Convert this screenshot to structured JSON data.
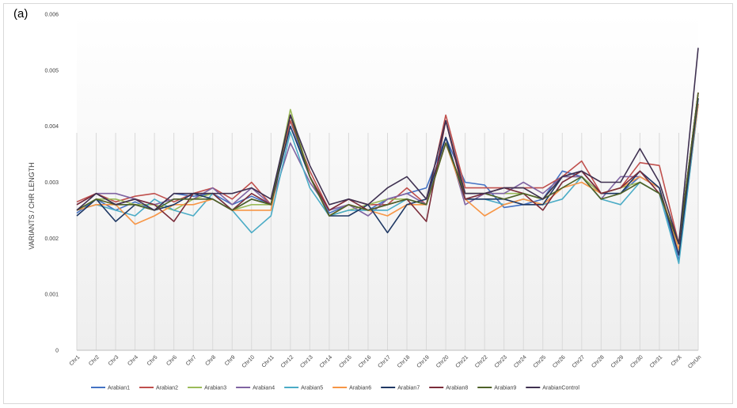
{
  "panel_label": "(a)",
  "chart_data": {
    "type": "line",
    "title": "",
    "xlabel": "",
    "ylabel": "VARIANTS / CHR LENGTH",
    "ylim": [
      0,
      0.006
    ],
    "yticks": [
      "0",
      "0.001",
      "0.002",
      "0.003",
      "0.004",
      "0.005",
      "0.006"
    ],
    "grid": "vertical",
    "legend_position": "bottom",
    "categories": [
      "Chr1",
      "Chr2",
      "Chr3",
      "Chr4",
      "Chr5",
      "Chr6",
      "Chr7",
      "Chr8",
      "Chr9",
      "Chr10",
      "Chr11",
      "Chr12",
      "Chr13",
      "Chr14",
      "Chr15",
      "Chr16",
      "Chr17",
      "Chr18",
      "Chr19",
      "Chr20",
      "Chr21",
      "Chr22",
      "Chr23",
      "Chr24",
      "Chr25",
      "Chr26",
      "Chr27",
      "Chr28",
      "Chr29",
      "Chr30",
      "Chr31",
      "ChrX",
      "ChrUn"
    ],
    "series": [
      {
        "name": "Arabian1",
        "color": "#4472c4",
        "values": [
          0.00245,
          0.0027,
          0.0025,
          0.00265,
          0.0025,
          0.0028,
          0.00275,
          0.0028,
          0.0026,
          0.00275,
          0.0026,
          0.0041,
          0.0031,
          0.00245,
          0.0026,
          0.0025,
          0.0027,
          0.0028,
          0.0029,
          0.0038,
          0.003,
          0.00295,
          0.00255,
          0.0026,
          0.0027,
          0.0032,
          0.0031,
          0.0028,
          0.0028,
          0.0031,
          0.0029,
          0.0016,
          0.0044
        ]
      },
      {
        "name": "Arabian2",
        "color": "#c0504d",
        "values": [
          0.00265,
          0.0028,
          0.00265,
          0.00275,
          0.0028,
          0.00265,
          0.0028,
          0.0029,
          0.0027,
          0.003,
          0.0026,
          0.0041,
          0.0032,
          0.0025,
          0.0027,
          0.0026,
          0.0026,
          0.0029,
          0.0026,
          0.0042,
          0.0029,
          0.0029,
          0.0029,
          0.0029,
          0.0029,
          0.0031,
          0.00338,
          0.0028,
          0.0029,
          0.00335,
          0.0033,
          0.0019,
          0.0046
        ]
      },
      {
        "name": "Arabian3",
        "color": "#9bbb59",
        "values": [
          0.0025,
          0.0027,
          0.0027,
          0.0026,
          0.0026,
          0.0025,
          0.0027,
          0.0028,
          0.0025,
          0.0026,
          0.0026,
          0.0043,
          0.0031,
          0.0024,
          0.0025,
          0.0026,
          0.0027,
          0.0027,
          0.0026,
          0.0037,
          0.0028,
          0.0028,
          0.0028,
          0.0028,
          0.0027,
          0.0031,
          0.0031,
          0.0028,
          0.0029,
          0.003,
          0.0028,
          0.0019,
          0.0045
        ]
      },
      {
        "name": "Arabian4",
        "color": "#8064a2",
        "values": [
          0.0026,
          0.0028,
          0.0028,
          0.0027,
          0.0026,
          0.0027,
          0.0027,
          0.0029,
          0.0026,
          0.0029,
          0.0026,
          0.0037,
          0.003,
          0.0025,
          0.0026,
          0.0024,
          0.0027,
          0.0028,
          0.0026,
          0.0038,
          0.0026,
          0.0028,
          0.0028,
          0.003,
          0.0028,
          0.0031,
          0.0031,
          0.0027,
          0.0031,
          0.0031,
          0.0029,
          0.0017,
          0.0045
        ]
      },
      {
        "name": "Arabian5",
        "color": "#4bacc6",
        "values": [
          0.0025,
          0.0026,
          0.0025,
          0.0024,
          0.0027,
          0.0025,
          0.0024,
          0.0028,
          0.0025,
          0.0021,
          0.0024,
          0.0039,
          0.0029,
          0.0024,
          0.0025,
          0.0025,
          0.0025,
          0.0027,
          0.0026,
          0.0037,
          0.0027,
          0.0027,
          0.0026,
          0.0027,
          0.0026,
          0.0027,
          0.0031,
          0.0027,
          0.0026,
          0.003,
          0.0028,
          0.00155,
          0.0044
        ]
      },
      {
        "name": "Arabian6",
        "color": "#f79646",
        "values": [
          0.0025,
          0.0026,
          0.0026,
          0.00225,
          0.0024,
          0.0026,
          0.0026,
          0.0027,
          0.0025,
          0.0025,
          0.0025,
          0.0042,
          0.0031,
          0.0024,
          0.0026,
          0.0025,
          0.0024,
          0.0026,
          0.0026,
          0.0037,
          0.0027,
          0.0024,
          0.0026,
          0.0027,
          0.0026,
          0.0029,
          0.003,
          0.0028,
          0.0029,
          0.0031,
          0.0029,
          0.0018,
          0.0044
        ]
      },
      {
        "name": "Arabian7",
        "color": "#1f3864",
        "values": [
          0.0024,
          0.0027,
          0.0023,
          0.0026,
          0.0025,
          0.0026,
          0.0028,
          0.0027,
          0.0025,
          0.0027,
          0.0026,
          0.004,
          0.0031,
          0.0024,
          0.0024,
          0.0026,
          0.0021,
          0.0026,
          0.0027,
          0.0038,
          0.0027,
          0.0027,
          0.0027,
          0.0026,
          0.0026,
          0.0031,
          0.0032,
          0.0028,
          0.0028,
          0.0032,
          0.0029,
          0.0017,
          0.0045
        ]
      },
      {
        "name": "Arabian8",
        "color": "#7b2c3a",
        "values": [
          0.0026,
          0.0028,
          0.0026,
          0.0027,
          0.0026,
          0.0023,
          0.0028,
          0.0028,
          0.0025,
          0.0028,
          0.0026,
          0.0042,
          0.0031,
          0.0025,
          0.0027,
          0.0025,
          0.0026,
          0.0027,
          0.0023,
          0.0041,
          0.0027,
          0.0028,
          0.0029,
          0.0028,
          0.0025,
          0.003,
          0.0032,
          0.0028,
          0.0029,
          0.0032,
          0.0028,
          0.0019,
          0.0046
        ]
      },
      {
        "name": "Arabian9",
        "color": "#4f6228",
        "values": [
          0.0025,
          0.0027,
          0.0026,
          0.0026,
          0.0025,
          0.0027,
          0.0027,
          0.0027,
          0.0025,
          0.0027,
          0.0026,
          0.0042,
          0.0031,
          0.0024,
          0.0026,
          0.0025,
          0.0026,
          0.0027,
          0.0026,
          0.0037,
          0.0028,
          0.0028,
          0.0027,
          0.0028,
          0.0027,
          0.0029,
          0.0031,
          0.0027,
          0.0028,
          0.003,
          0.0028,
          0.0019,
          0.0046
        ]
      },
      {
        "name": "ArabianControl",
        "color": "#3f3151",
        "values": [
          0.0025,
          0.0028,
          0.0026,
          0.0027,
          0.0025,
          0.0028,
          0.0028,
          0.0028,
          0.0028,
          0.0029,
          0.0027,
          0.0042,
          0.0033,
          0.0026,
          0.0027,
          0.0026,
          0.0029,
          0.0031,
          0.0027,
          0.0041,
          0.0028,
          0.0028,
          0.0029,
          0.0029,
          0.0027,
          0.0031,
          0.0032,
          0.003,
          0.003,
          0.0036,
          0.003,
          0.0019,
          0.0054
        ]
      }
    ]
  }
}
